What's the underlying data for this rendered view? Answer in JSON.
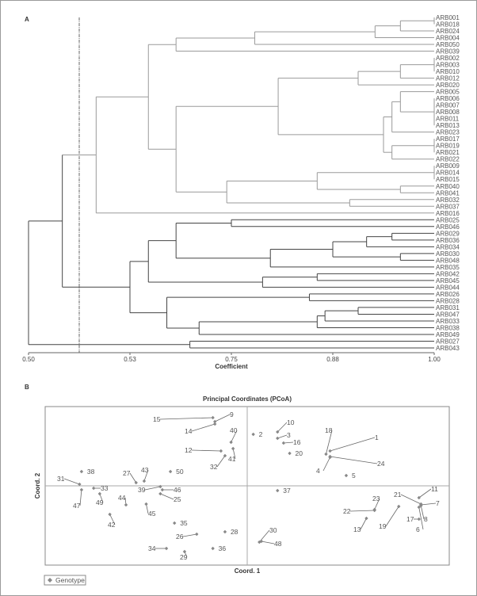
{
  "panel_a_label": "A",
  "panel_b_label": "B",
  "chart_data": [
    {
      "type": "dendrogram",
      "xlabel": "Coefficient",
      "xticks": [
        "0.50",
        "0.53",
        "0.75",
        "0.88",
        "1.00"
      ],
      "xtick_values": [
        0.5,
        0.53,
        0.75,
        0.88,
        1.0
      ],
      "xlim": [
        0.5,
        1.0
      ],
      "cut_line": 0.515,
      "colors": {
        "upper_cluster": "#9a9a9a",
        "lower_cluster": "#444444"
      },
      "leaves": [
        "ARB001",
        "ARB018",
        "ARB024",
        "ARB004",
        "ARB050",
        "ARB039",
        "ARB002",
        "ARB003",
        "ARB010",
        "ARB012",
        "ARB020",
        "ARB005",
        "ARB006",
        "ARB007",
        "ARB008",
        "ARB011",
        "ARB013",
        "ARB023",
        "ARB017",
        "ARB019",
        "ARB021",
        "ARB022",
        "ARB009",
        "ARB014",
        "ARB015",
        "ARB040",
        "ARB041",
        "ARB032",
        "ARB037",
        "ARB016",
        "ARB025",
        "ARB046",
        "ARB029",
        "ARB036",
        "ARB034",
        "ARB030",
        "ARB048",
        "ARB035",
        "ARB042",
        "ARB045",
        "ARB044",
        "ARB026",
        "ARB028",
        "ARB031",
        "ARB047",
        "ARB033",
        "ARB038",
        "ARB049",
        "ARB027",
        "ARB043"
      ],
      "tree": [
        0.5,
        [
          0.51,
          [
            0.52,
            [
              0.57,
              [
                0.63,
                [
                  0.78,
                  [
                    0.93,
                    [
                      0.96,
                      [
                        1.0,
                        "ARB001",
                        "ARB018"
                      ],
                      "ARB024"
                    ],
                    "ARB004"
                  ],
                  "ARB050"
                ],
                "ARB039"
              ],
              [
                0.63,
                [
                  0.81,
                  [
                    0.91,
                    [
                      0.96,
                      [
                        1.0,
                        "ARB002",
                        "ARB003",
                        "ARB010"
                      ],
                      "ARB012"
                    ],
                    "ARB020"
                  ],
                  [
                    0.94,
                    [
                      0.95,
                      [
                        0.96,
                        "ARB005",
                        [
                          1.0,
                          "ARB006",
                          "ARB007",
                          "ARB008",
                          "ARB011",
                          "ARB013"
                        ]
                      ],
                      "ARB023"
                    ],
                    [
                      0.95,
                      [
                        1.0,
                        "ARB017",
                        "ARB019",
                        "ARB021"
                      ],
                      "ARB022"
                    ]
                  ]
                ],
                [
                  0.74,
                  [
                    0.86,
                    [
                      1.0,
                      "ARB009",
                      "ARB014",
                      "ARB015"
                    ],
                    [
                      0.96,
                      "ARB040",
                      "ARB041"
                    ]
                  ],
                  [
                    0.9,
                    "ARB032",
                    "ARB037"
                  ]
                ]
              ]
            ],
            "ARB016"
          ],
          [
            0.53,
            [
              0.57,
              [
                0.63,
                [
                  0.75,
                  "ARB025",
                  "ARB046"
                ],
                [
                  0.8,
                  [
                    0.88,
                    [
                      0.92,
                      [
                        0.95,
                        "ARB029",
                        "ARB036"
                      ],
                      "ARB034"
                    ],
                    [
                      0.96,
                      "ARB030",
                      "ARB048"
                    ]
                  ],
                  "ARB035"
                ]
              ],
              [
                0.79,
                [
                  0.86,
                  "ARB042",
                  "ARB045"
                ],
                "ARB044"
              ]
            ],
            [
              0.61,
              [
                0.85,
                "ARB026",
                "ARB028"
              ],
              [
                0.68,
                [
                  0.86,
                  [
                    0.87,
                    [
                      0.91,
                      "ARB031",
                      "ARB047"
                    ],
                    "ARB033"
                  ],
                  "ARB038"
                ],
                "ARB049"
              ]
            ]
          ]
        ],
        [
          0.66,
          "ARB027",
          "ARB043"
        ]
      ]
    },
    {
      "type": "scatter",
      "title": "Principal Coordinates (PCoA)",
      "xlabel": "Coord. 1",
      "ylabel": "Coord. 2",
      "legend": {
        "label": "Genotype",
        "placement": "bottom-left"
      },
      "marker_color": "#888888",
      "grid": false,
      "axis_ticks": false,
      "points": [
        {
          "id": "1",
          "x": 0.41,
          "y": 0.44
        },
        {
          "id": "2",
          "x": 0.03,
          "y": 0.65
        },
        {
          "id": "3",
          "x": 0.15,
          "y": 0.6
        },
        {
          "id": "4",
          "x": 0.41,
          "y": 0.36
        },
        {
          "id": "5",
          "x": 0.49,
          "y": 0.13
        },
        {
          "id": "6",
          "x": 0.85,
          "y": -0.27
        },
        {
          "id": "7",
          "x": 0.86,
          "y": -0.24
        },
        {
          "id": "8",
          "x": 0.86,
          "y": -0.25
        },
        {
          "id": "9",
          "x": -0.16,
          "y": 0.81
        },
        {
          "id": "10",
          "x": 0.15,
          "y": 0.68
        },
        {
          "id": "11",
          "x": 0.85,
          "y": -0.15
        },
        {
          "id": "12",
          "x": -0.13,
          "y": 0.44
        },
        {
          "id": "13",
          "x": 0.59,
          "y": -0.41
        },
        {
          "id": "14",
          "x": -0.16,
          "y": 0.78
        },
        {
          "id": "15",
          "x": -0.17,
          "y": 0.86
        },
        {
          "id": "16",
          "x": 0.18,
          "y": 0.54
        },
        {
          "id": "17",
          "x": 0.85,
          "y": -0.42
        },
        {
          "id": "18",
          "x": 0.39,
          "y": 0.4
        },
        {
          "id": "19",
          "x": 0.75,
          "y": -0.26
        },
        {
          "id": "20",
          "x": 0.21,
          "y": 0.41
        },
        {
          "id": "21",
          "x": 0.86,
          "y": -0.23
        },
        {
          "id": "22",
          "x": 0.63,
          "y": -0.31
        },
        {
          "id": "23",
          "x": 0.63,
          "y": -0.3
        },
        {
          "id": "24",
          "x": 0.41,
          "y": 0.37
        },
        {
          "id": "25",
          "x": -0.43,
          "y": -0.1
        },
        {
          "id": "26",
          "x": -0.25,
          "y": -0.61
        },
        {
          "id": "27",
          "x": -0.55,
          "y": 0.04
        },
        {
          "id": "28",
          "x": -0.11,
          "y": -0.58
        },
        {
          "id": "29",
          "x": -0.31,
          "y": -0.83
        },
        {
          "id": "30",
          "x": 0.06,
          "y": -0.71
        },
        {
          "id": "31",
          "x": -0.83,
          "y": 0.02
        },
        {
          "id": "32",
          "x": -0.11,
          "y": 0.38
        },
        {
          "id": "33",
          "x": -0.76,
          "y": -0.03
        },
        {
          "id": "34",
          "x": -0.4,
          "y": -0.79
        },
        {
          "id": "35",
          "x": -0.36,
          "y": -0.47
        },
        {
          "id": "36",
          "x": -0.17,
          "y": -0.79
        },
        {
          "id": "37",
          "x": 0.15,
          "y": -0.06
        },
        {
          "id": "38",
          "x": -0.82,
          "y": 0.18
        },
        {
          "id": "39",
          "x": -0.43,
          "y": -0.01
        },
        {
          "id": "40",
          "x": -0.08,
          "y": 0.55
        },
        {
          "id": "41",
          "x": -0.07,
          "y": 0.47
        },
        {
          "id": "42",
          "x": -0.68,
          "y": -0.36
        },
        {
          "id": "43",
          "x": -0.51,
          "y": 0.06
        },
        {
          "id": "44",
          "x": -0.6,
          "y": -0.24
        },
        {
          "id": "45",
          "x": -0.5,
          "y": -0.23
        },
        {
          "id": "46",
          "x": -0.42,
          "y": -0.05
        },
        {
          "id": "47",
          "x": -0.82,
          "y": -0.05
        },
        {
          "id": "48",
          "x": 0.07,
          "y": -0.7
        },
        {
          "id": "49",
          "x": -0.73,
          "y": -0.1
        },
        {
          "id": "50",
          "x": -0.38,
          "y": 0.18
        }
      ]
    }
  ]
}
